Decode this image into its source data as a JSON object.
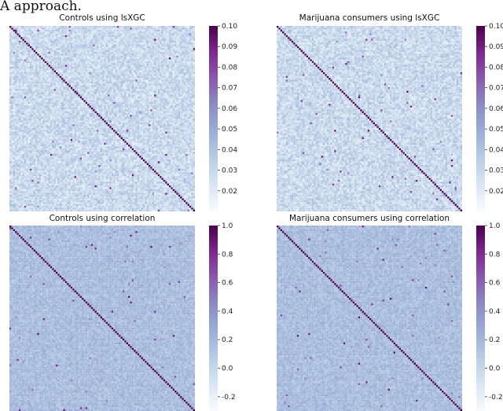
{
  "caption": "A approach.",
  "colors": {
    "colormap": [
      "#f7fbff",
      "#dbe6f3",
      "#b9cde6",
      "#9caed6",
      "#8c8cc4",
      "#8a5aae",
      "#7d2890",
      "#4b004b"
    ]
  },
  "chart_data": [
    {
      "type": "heatmap",
      "title": "Controls using lsXGC",
      "n": 100,
      "diagonal_value": 0.1,
      "colorbar": {
        "min": 0.01,
        "max": 0.1,
        "ticks": [
          0.02,
          0.03,
          0.04,
          0.05,
          0.06,
          0.07,
          0.08,
          0.09,
          0.1
        ]
      },
      "typical_range": [
        0.015,
        0.045
      ]
    },
    {
      "type": "heatmap",
      "title": "Marijuana consumers using lsXGC",
      "n": 100,
      "diagonal_value": 0.1,
      "colorbar": {
        "min": 0.01,
        "max": 0.1,
        "ticks": [
          0.02,
          0.03,
          0.04,
          0.05,
          0.06,
          0.07,
          0.08,
          0.09,
          0.1
        ]
      },
      "typical_range": [
        0.015,
        0.045
      ]
    },
    {
      "type": "heatmap",
      "title": "Controls using correlation",
      "n": 100,
      "diagonal_value": 1.0,
      "colorbar": {
        "min": -0.3,
        "max": 1.0,
        "ticks": [
          -0.2,
          0.0,
          0.2,
          0.4,
          0.6,
          0.8,
          1.0
        ]
      },
      "typical_range": [
        0.05,
        0.3
      ]
    },
    {
      "type": "heatmap",
      "title": "Marijuana consumers using correlation",
      "n": 100,
      "diagonal_value": 1.0,
      "colorbar": {
        "min": -0.3,
        "max": 1.0,
        "ticks": [
          -0.2,
          0.0,
          0.2,
          0.4,
          0.6,
          0.8,
          1.0
        ]
      },
      "typical_range": [
        0.05,
        0.3
      ]
    }
  ]
}
